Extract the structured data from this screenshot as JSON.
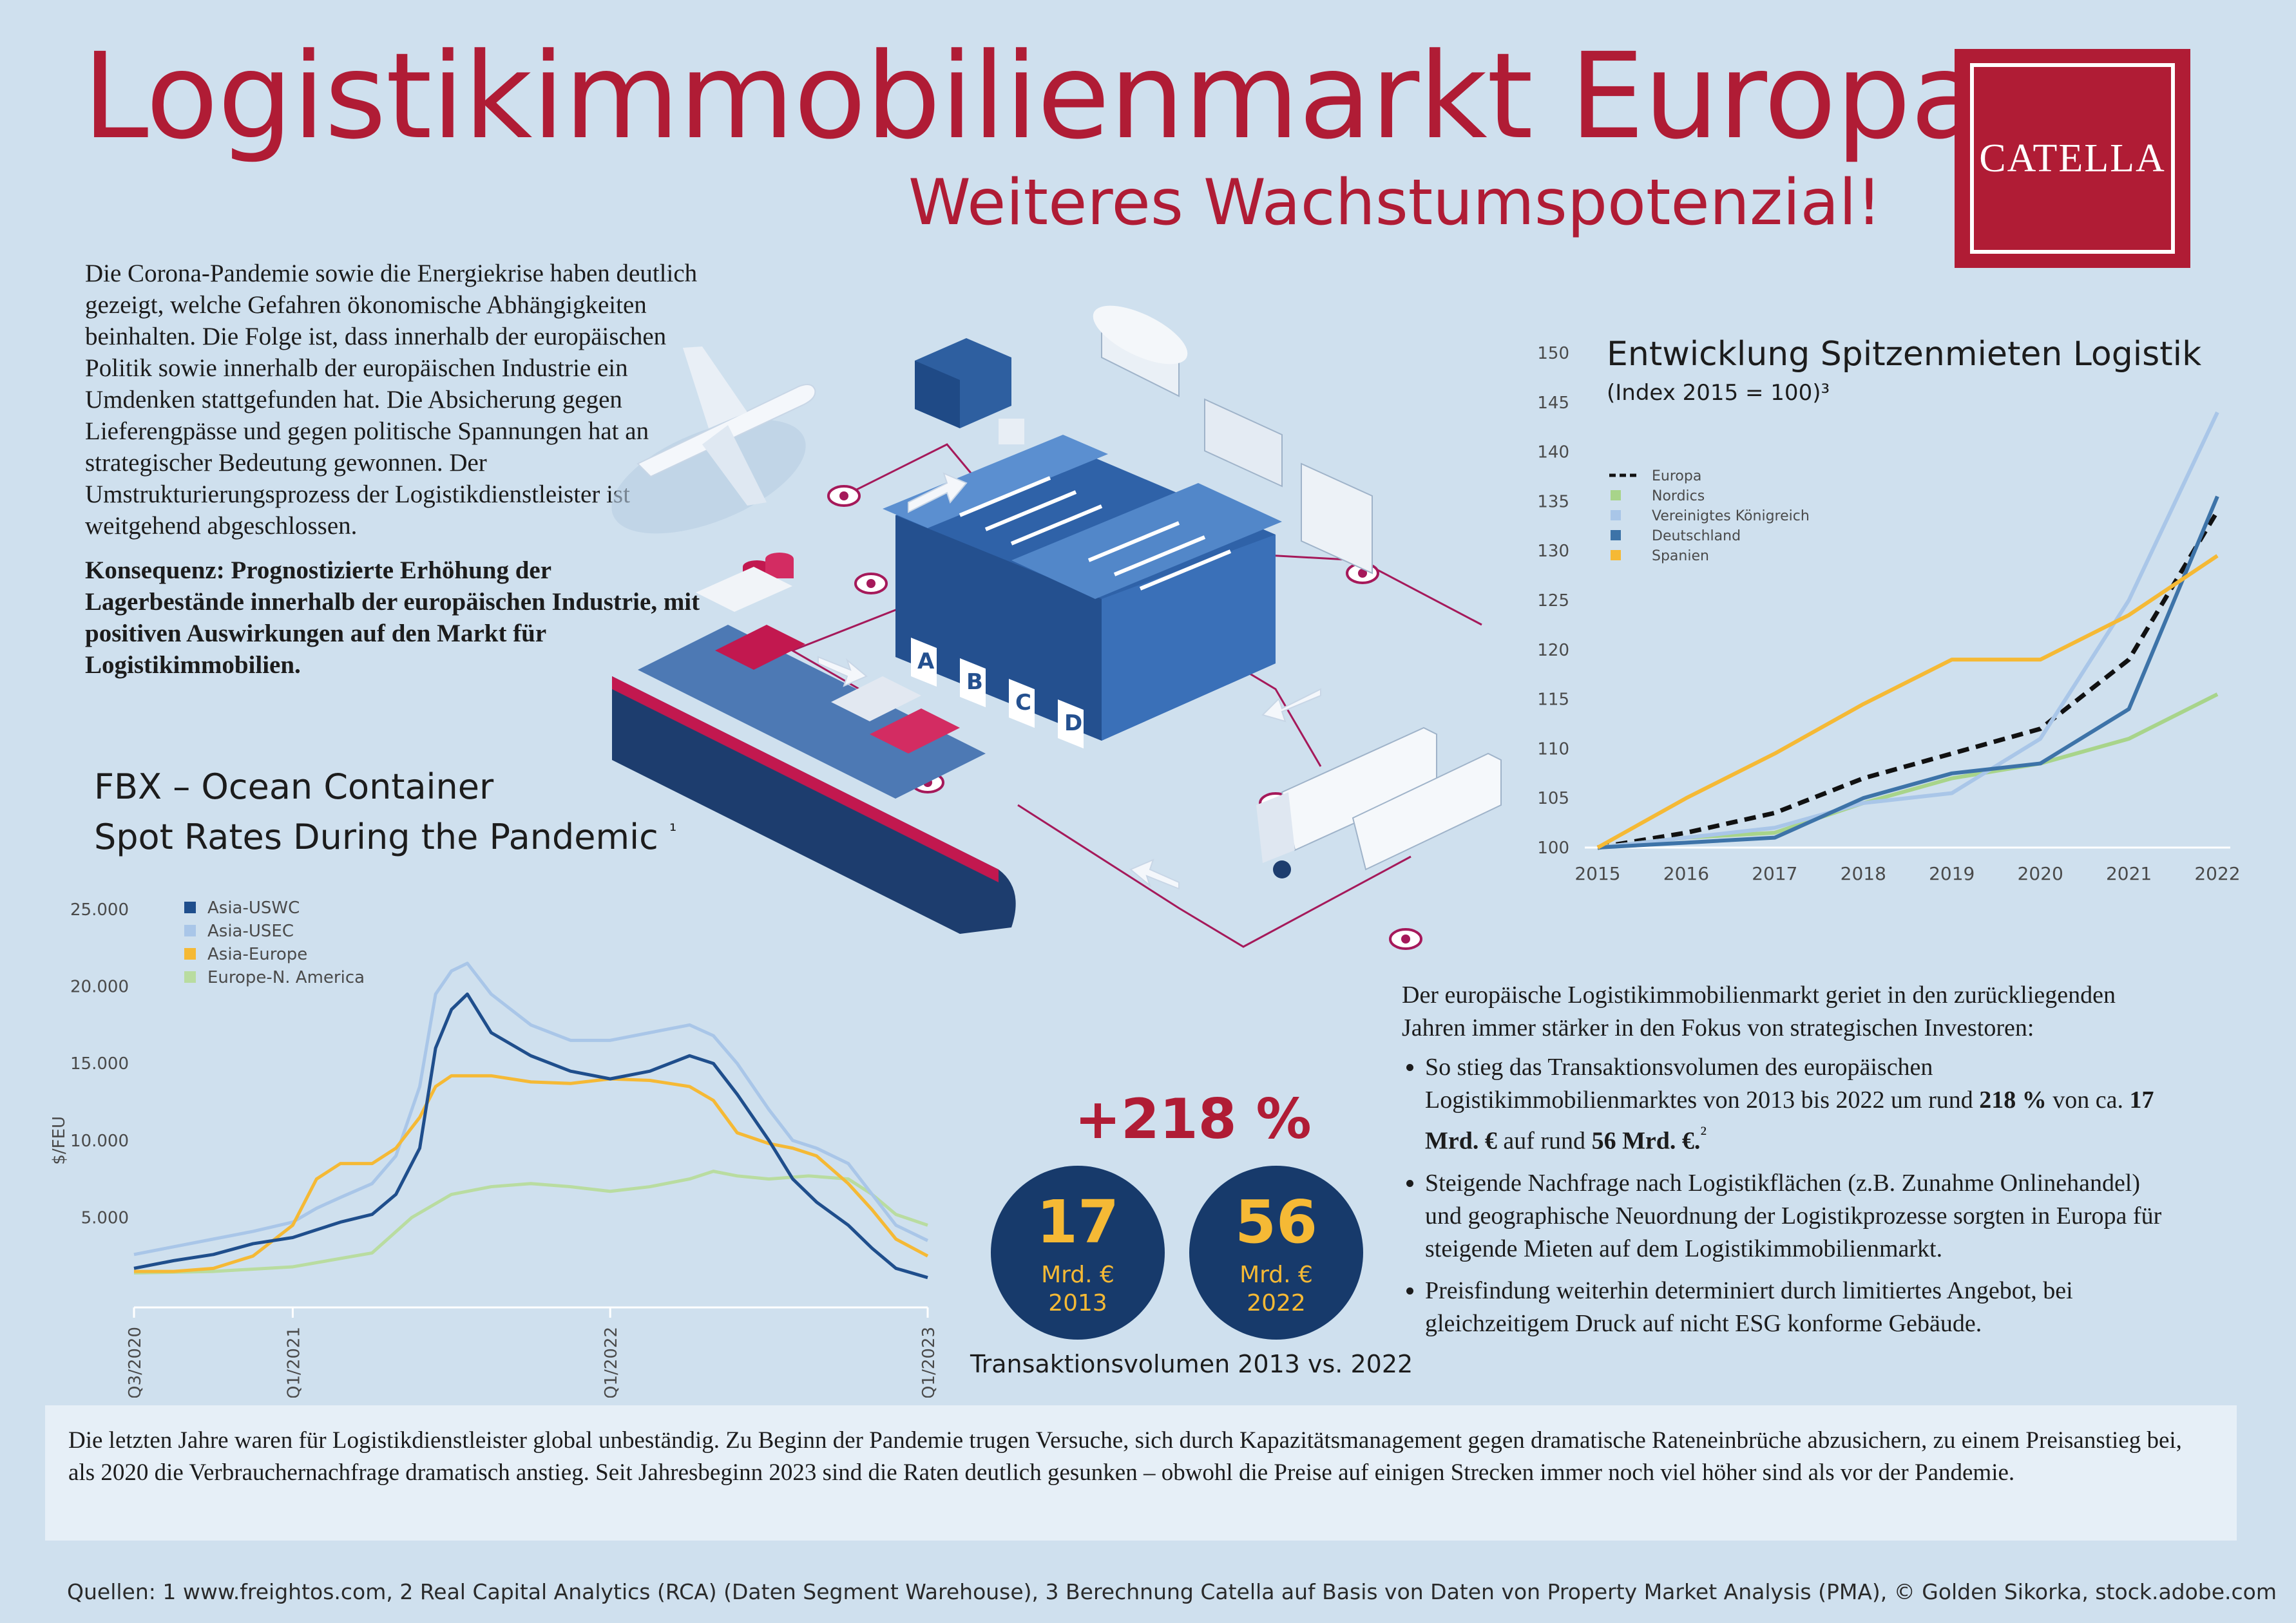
{
  "header": {
    "title": "Logistikimmobilienmarkt Europa –",
    "subtitle": "Weiteres Wachstumspotenzial!",
    "logo_text": "CATELLA"
  },
  "intro": {
    "paragraph": "Die Corona-Pandemie sowie die Energiekrise haben deutlich gezeigt, welche Gefahren ökonomische Abhängigkeiten beinhalten. Die Folge ist, dass innerhalb der europäischen Politik sowie innerhalb der europäischen Industrie ein Umdenken stattgefunden hat. Die Absicherung gegen Lieferengpässe und gegen politische Spannungen hat an strategischer Bedeutung gewonnen. Der Umstrukturierungsprozess der Logistikdienstleister ist weitgehend abgeschlossen.",
    "conclusion": "Konsequenz: Prognostizierte Erhöhung der Lagerbestände innerhalb der europäischen Industrie, mit positiven Auswirkungen auf den Markt für Logistikimmobilien."
  },
  "illustration": {
    "dock_letters": [
      "A",
      "B",
      "C",
      "D"
    ]
  },
  "chart_data": [
    {
      "type": "line",
      "title": "FBX – Ocean Container Spot Rates During the Pandemic",
      "title_line1": "FBX – Ocean Container",
      "title_line2": "Spot Rates During the Pandemic",
      "footnote_mark": "¹",
      "ylabel": "$/FEU",
      "ylim": [
        0,
        25000
      ],
      "yticks": [
        "25.000",
        "20.000",
        "15.000",
        "10.000",
        "5.000"
      ],
      "ytick_values": [
        25000,
        20000,
        15000,
        10000,
        5000
      ],
      "xticks": [
        "Q3/2020",
        "Q1/2021",
        "Q1/2022",
        "Q1/2023"
      ],
      "xtick_values": [
        0,
        2,
        6,
        10
      ],
      "xlim": [
        0,
        10
      ],
      "x_unit": "quarters since Q3/2020",
      "legend_position": "top-left",
      "series": [
        {
          "name": "Asia-USWC",
          "color": "#1f4e8c",
          "points": [
            [
              0,
              1700
            ],
            [
              0.5,
              2200
            ],
            [
              1,
              2600
            ],
            [
              1.5,
              3300
            ],
            [
              2,
              3700
            ],
            [
              2.3,
              4200
            ],
            [
              2.6,
              4700
            ],
            [
              3,
              5200
            ],
            [
              3.3,
              6500
            ],
            [
              3.6,
              9500
            ],
            [
              3.8,
              16000
            ],
            [
              4,
              18500
            ],
            [
              4.2,
              19500
            ],
            [
              4.5,
              17000
            ],
            [
              5,
              15500
            ],
            [
              5.5,
              14500
            ],
            [
              6,
              14000
            ],
            [
              6.5,
              14500
            ],
            [
              7,
              15500
            ],
            [
              7.3,
              15000
            ],
            [
              7.6,
              13000
            ],
            [
              8,
              10000
            ],
            [
              8.3,
              7500
            ],
            [
              8.6,
              6000
            ],
            [
              9,
              4500
            ],
            [
              9.3,
              3000
            ],
            [
              9.6,
              1700
            ],
            [
              10,
              1100
            ]
          ]
        },
        {
          "name": "Asia-USEC",
          "color": "#a9c6e8",
          "points": [
            [
              0,
              2600
            ],
            [
              0.5,
              3100
            ],
            [
              1,
              3600
            ],
            [
              1.5,
              4100
            ],
            [
              2,
              4700
            ],
            [
              2.3,
              5600
            ],
            [
              2.6,
              6300
            ],
            [
              3,
              7200
            ],
            [
              3.3,
              9000
            ],
            [
              3.6,
              13500
            ],
            [
              3.8,
              19500
            ],
            [
              4,
              21000
            ],
            [
              4.2,
              21500
            ],
            [
              4.5,
              19500
            ],
            [
              5,
              17500
            ],
            [
              5.5,
              16500
            ],
            [
              6,
              16500
            ],
            [
              6.5,
              17000
            ],
            [
              7,
              17500
            ],
            [
              7.3,
              16800
            ],
            [
              7.6,
              15000
            ],
            [
              8,
              12000
            ],
            [
              8.3,
              10000
            ],
            [
              8.6,
              9500
            ],
            [
              9,
              8500
            ],
            [
              9.3,
              6500
            ],
            [
              9.6,
              4500
            ],
            [
              10,
              3500
            ]
          ]
        },
        {
          "name": "Asia-Europe",
          "color": "#f5b935",
          "points": [
            [
              0,
              1500
            ],
            [
              0.5,
              1500
            ],
            [
              1,
              1700
            ],
            [
              1.5,
              2500
            ],
            [
              2,
              4500
            ],
            [
              2.3,
              7500
            ],
            [
              2.6,
              8500
            ],
            [
              3,
              8500
            ],
            [
              3.3,
              9500
            ],
            [
              3.6,
              11500
            ],
            [
              3.8,
              13500
            ],
            [
              4,
              14200
            ],
            [
              4.5,
              14200
            ],
            [
              5,
              13800
            ],
            [
              5.5,
              13700
            ],
            [
              6,
              14000
            ],
            [
              6.5,
              13900
            ],
            [
              7,
              13500
            ],
            [
              7.3,
              12600
            ],
            [
              7.6,
              10500
            ],
            [
              8,
              9800
            ],
            [
              8.3,
              9500
            ],
            [
              8.6,
              9000
            ],
            [
              9,
              7200
            ],
            [
              9.3,
              5500
            ],
            [
              9.6,
              3600
            ],
            [
              10,
              2500
            ]
          ]
        },
        {
          "name": "Europe-N. America",
          "color": "#b9dca0",
          "points": [
            [
              0,
              1400
            ],
            [
              1,
              1500
            ],
            [
              2,
              1800
            ],
            [
              3,
              2700
            ],
            [
              3.5,
              5000
            ],
            [
              4,
              6500
            ],
            [
              4.5,
              7000
            ],
            [
              5,
              7200
            ],
            [
              5.5,
              7000
            ],
            [
              6,
              6700
            ],
            [
              6.5,
              7000
            ],
            [
              7,
              7500
            ],
            [
              7.3,
              8000
            ],
            [
              7.6,
              7700
            ],
            [
              8,
              7500
            ],
            [
              8.5,
              7700
            ],
            [
              9,
              7500
            ],
            [
              9.3,
              6500
            ],
            [
              9.6,
              5200
            ],
            [
              10,
              4500
            ]
          ]
        }
      ]
    },
    {
      "type": "line",
      "title": "Entwicklung Spitzenmieten Logistik",
      "subtitle": "(Index 2015 = 100)³",
      "ylim": [
        100,
        150
      ],
      "yticks": [
        "150",
        "145",
        "140",
        "135",
        "130",
        "125",
        "120",
        "115",
        "110",
        "105",
        "100"
      ],
      "ytick_values": [
        150,
        145,
        140,
        135,
        130,
        125,
        120,
        115,
        110,
        105,
        100
      ],
      "x": [
        "2015",
        "2016",
        "2017",
        "2018",
        "2019",
        "2020",
        "2021",
        "2022"
      ],
      "legend_position": "top-left",
      "series": [
        {
          "name": "Europa",
          "color": "#111111",
          "dashed": true,
          "values": [
            100,
            101.5,
            103.5,
            107,
            109.5,
            112,
            119,
            134
          ]
        },
        {
          "name": "Nordics",
          "color": "#a8d48a",
          "values": [
            100,
            101,
            101.5,
            104.5,
            107,
            108.5,
            111,
            115.5
          ]
        },
        {
          "name": "Vereinigtes Königreich",
          "color": "#a9c6e8",
          "values": [
            100,
            101,
            102,
            104.5,
            105.5,
            111,
            125,
            144
          ]
        },
        {
          "name": "Deutschland",
          "color": "#3d73a8",
          "values": [
            100,
            100.5,
            101,
            105,
            107.5,
            108.5,
            114,
            135.5
          ]
        },
        {
          "name": "Spanien",
          "color": "#f5b935",
          "values": [
            100,
            105,
            109.5,
            114.5,
            119,
            119,
            123.5,
            129.5
          ]
        }
      ]
    }
  ],
  "transaction": {
    "percent": "+218 %",
    "left_value": "17",
    "left_unit": "Mrd. €",
    "left_year": "2013",
    "right_value": "56",
    "right_unit": "Mrd. €",
    "right_year": "2022",
    "label": "Transaktionsvolumen 2013 vs. 2022"
  },
  "right_text": {
    "intro": "Der europäische Logistikimmobilienmarkt geriet in den zurückliegenden Jahren immer stärker in den Fokus von strategischen Investoren:",
    "b1_a": "So stieg das Transaktionsvolumen des europäischen Logistikimmobilienmarktes von 2013 bis 2022 um rund ",
    "b1_pct": "218 %",
    "b1_b": " von ca. ",
    "b1_from": "17 Mrd. €",
    "b1_c": " auf rund ",
    "b1_to": "56 Mrd. €.",
    "b1_sup": "²",
    "b2": "Steigende Nachfrage nach Logistikflächen (z.B. Zunahme Onlinehandel) und geographische Neuordnung der Logistikprozesse sorgten in Europa für steigende Mieten auf dem Logistikimmobilienmarkt.",
    "b3": "Preisfindung weiterhin determiniert durch limitiertes Angebot, bei gleichzeitigem Druck auf nicht ESG konforme Gebäude."
  },
  "bottom": {
    "text": "Die letzten Jahre waren für Logistikdienstleister global unbeständig. Zu Beginn der Pandemie trugen Versuche, sich durch Kapazitätsmanagement gegen dramatische Rateneinbrüche abzusichern, zu einem Preisanstieg bei, als 2020 die Verbrauchernachfrage dramatisch anstieg. Seit Jahresbeginn 2023 sind die Raten deutlich gesunken – obwohl die Preise auf einigen Strecken immer noch viel höher sind als vor der Pandemie."
  },
  "sources": "Quellen: 1 www.freightos.com,  2 Real Capital Analytics (RCA) (Daten Segment Warehouse), 3 Berechnung Catella auf Basis von Daten von Property Market Analysis (PMA), © Golden Sikorka, stock.adobe.com",
  "colors": {
    "brand": "#b01c35",
    "navy": "#173a6b",
    "gold": "#f5b935",
    "background": "#cfe0ee"
  }
}
